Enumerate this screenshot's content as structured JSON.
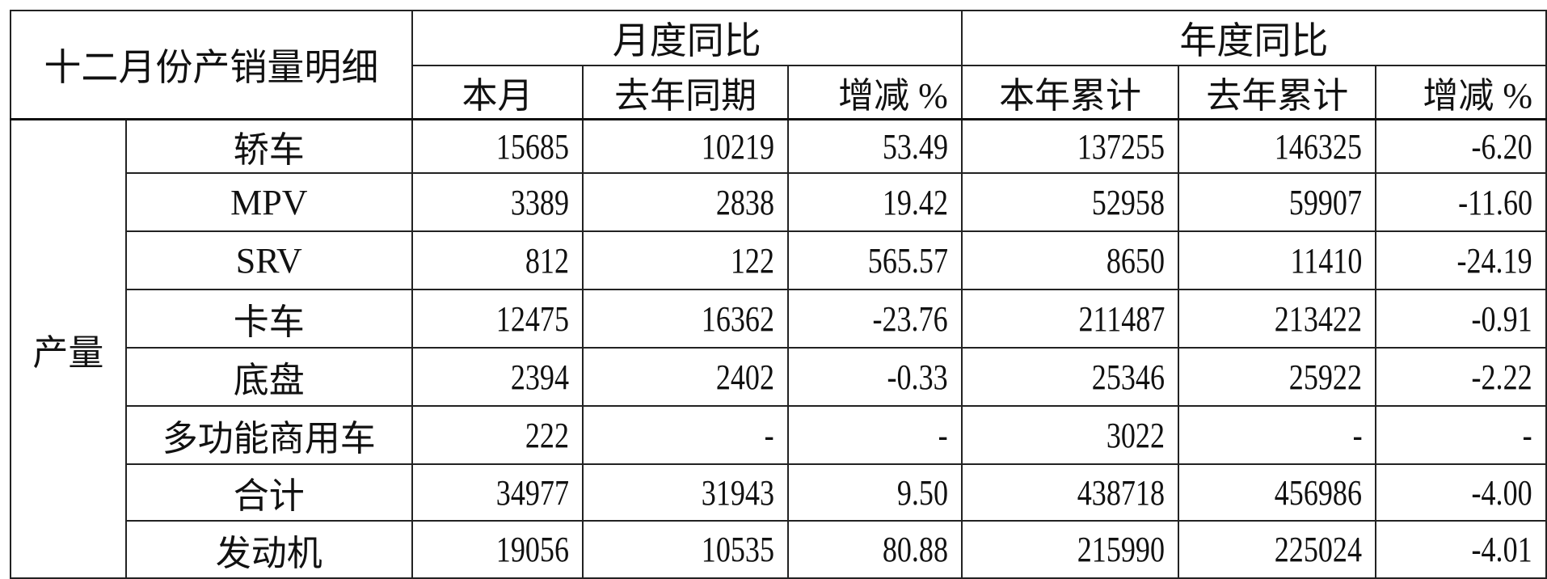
{
  "title": "十二月份产销量明细",
  "group_monthly": "月度同比",
  "group_yearly": "年度同比",
  "columns": [
    "本月",
    "去年同期",
    "增减 %",
    "本年累计",
    "去年累计",
    "增减 %"
  ],
  "section_label": "产量",
  "rows": [
    {
      "name": "轿车",
      "values": [
        "15685",
        "10219",
        "53.49",
        "137255",
        "146325",
        "-6.20"
      ]
    },
    {
      "name": "MPV",
      "values": [
        "3389",
        "2838",
        "19.42",
        "52958",
        "59907",
        "-11.60"
      ]
    },
    {
      "name": "SRV",
      "values": [
        "812",
        "122",
        "565.57",
        "8650",
        "11410",
        "-24.19"
      ]
    },
    {
      "name": "卡车",
      "values": [
        "12475",
        "16362",
        "-23.76",
        "211487",
        "213422",
        "-0.91"
      ]
    },
    {
      "name": "底盘",
      "values": [
        "2394",
        "2402",
        "-0.33",
        "25346",
        "25922",
        "-2.22"
      ]
    },
    {
      "name": "多功能商用车",
      "values": [
        "222",
        "-",
        "-",
        "3022",
        "-",
        "-"
      ]
    },
    {
      "name": "合计",
      "values": [
        "34977",
        "31943",
        "9.50",
        "438718",
        "456986",
        "-4.00"
      ]
    },
    {
      "name": "发动机",
      "values": [
        "19056",
        "10535",
        "80.88",
        "215990",
        "225024",
        "-4.01"
      ]
    }
  ]
}
